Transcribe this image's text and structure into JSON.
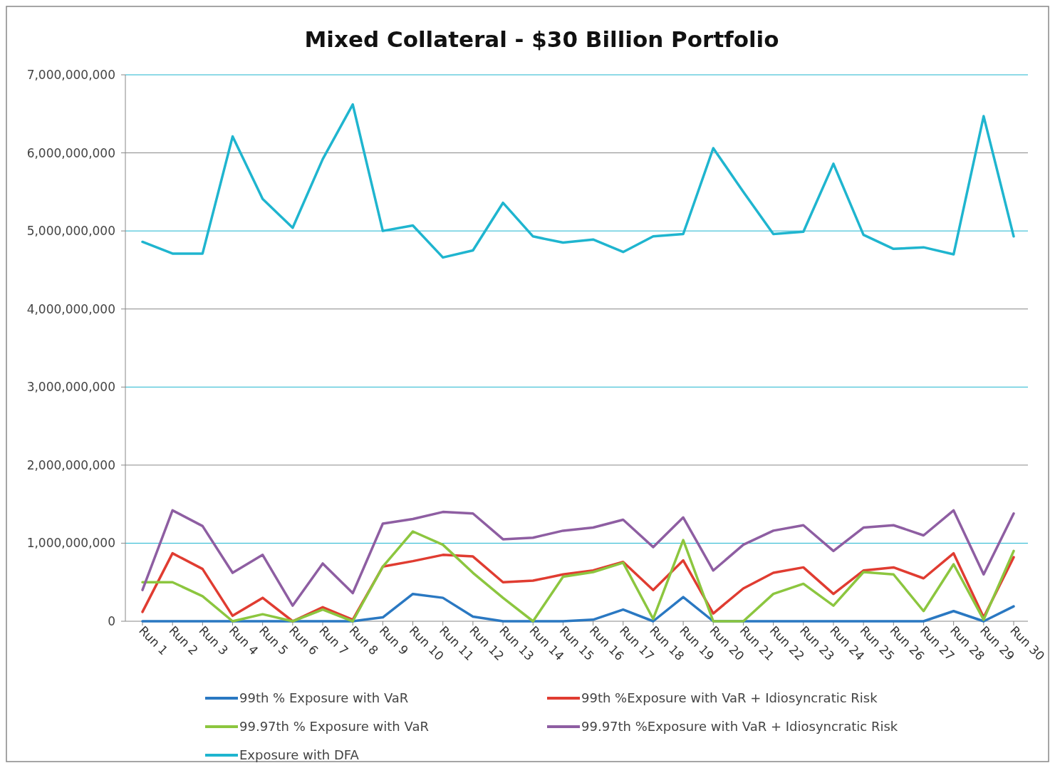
{
  "chart_data": {
    "type": "line",
    "title": "Mixed Collateral - $30 Billion Portfolio",
    "categories": [
      "Run 1",
      "Run 2",
      "Run 3",
      "Run 4",
      "Run 5",
      "Run 6",
      "Run 7",
      "Run 8",
      "Run 9",
      "Run 10",
      "Run 11",
      "Run 12",
      "Run 13",
      "Run 14",
      "Run 15",
      "Run 16",
      "Run 17",
      "Run 18",
      "Run 19",
      "Run 20",
      "Run 21",
      "Run 22",
      "Run 23",
      "Run 24",
      "Run 25",
      "Run 26",
      "Run 27",
      "Run 28",
      "Run 29",
      "Run 30"
    ],
    "series": [
      {
        "name": "99th % Exposure with VaR",
        "color": "#2a78c2",
        "values": [
          0,
          0,
          0,
          0,
          0,
          0,
          0,
          0,
          50000000,
          350000000,
          300000000,
          60000000,
          0,
          0,
          0,
          20000000,
          150000000,
          0,
          310000000,
          0,
          0,
          0,
          0,
          0,
          0,
          0,
          0,
          130000000,
          0,
          190000000
        ]
      },
      {
        "name": "99th %Exposure with VaR + Idiosyncratic Risk",
        "color": "#e03c31",
        "values": [
          120000000,
          870000000,
          670000000,
          70000000,
          300000000,
          0,
          180000000,
          20000000,
          700000000,
          770000000,
          850000000,
          830000000,
          500000000,
          520000000,
          600000000,
          650000000,
          760000000,
          400000000,
          780000000,
          100000000,
          420000000,
          620000000,
          690000000,
          350000000,
          650000000,
          690000000,
          550000000,
          870000000,
          50000000,
          820000000
        ]
      },
      {
        "name": "99.97th % Exposure with VaR",
        "color": "#8cc63f",
        "values": [
          500000000,
          500000000,
          320000000,
          0,
          90000000,
          0,
          150000000,
          0,
          700000000,
          1150000000,
          980000000,
          620000000,
          300000000,
          0,
          570000000,
          630000000,
          750000000,
          30000000,
          1040000000,
          0,
          0,
          350000000,
          480000000,
          200000000,
          630000000,
          600000000,
          130000000,
          730000000,
          20000000,
          900000000
        ]
      },
      {
        "name": "99.97th %Exposure with VaR + Idiosyncratic Risk",
        "color": "#8e5ea2",
        "values": [
          400000000,
          1420000000,
          1220000000,
          620000000,
          850000000,
          200000000,
          740000000,
          360000000,
          1250000000,
          1310000000,
          1400000000,
          1380000000,
          1050000000,
          1070000000,
          1160000000,
          1200000000,
          1300000000,
          950000000,
          1330000000,
          650000000,
          980000000,
          1160000000,
          1230000000,
          900000000,
          1200000000,
          1230000000,
          1100000000,
          1420000000,
          600000000,
          1380000000
        ]
      },
      {
        "name": "Exposure with DFA",
        "color": "#1fb5cf",
        "values": [
          4860000000,
          4710000000,
          4710000000,
          6210000000,
          5410000000,
          5040000000,
          5920000000,
          6620000000,
          5000000000,
          5070000000,
          4660000000,
          4750000000,
          5360000000,
          4930000000,
          4850000000,
          4890000000,
          4730000000,
          4930000000,
          4960000000,
          6060000000,
          5500000000,
          4960000000,
          4990000000,
          5860000000,
          4950000000,
          4770000000,
          4790000000,
          4700000000,
          6470000000,
          4930000000
        ]
      }
    ],
    "ylim": [
      0,
      7000000000
    ],
    "yticks": [
      {
        "value": 0,
        "label": "0"
      },
      {
        "value": 1000000000,
        "label": "1,000,000,000"
      },
      {
        "value": 2000000000,
        "label": "2,000,000,000"
      },
      {
        "value": 3000000000,
        "label": "3,000,000,000"
      },
      {
        "value": 4000000000,
        "label": "4,000,000,000"
      },
      {
        "value": 5000000000,
        "label": "5,000,000,000"
      },
      {
        "value": 6000000000,
        "label": "6,000,000,000"
      },
      {
        "value": 7000000000,
        "label": "7,000,000,000"
      }
    ],
    "grid": "y",
    "legend": "bottom",
    "marker": "none",
    "line_style": "solid"
  }
}
